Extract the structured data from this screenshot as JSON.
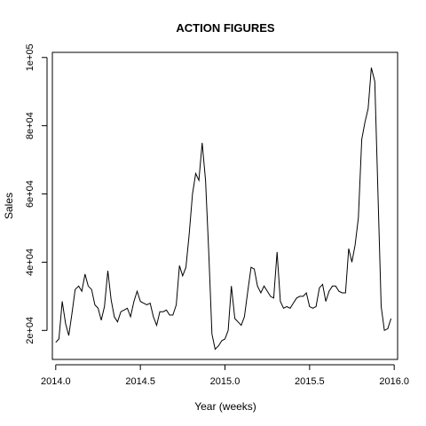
{
  "chart_data": {
    "type": "line",
    "title": "ACTION FIGURES",
    "xlabel": "Year (weeks)",
    "ylabel": "Sales",
    "xlim": [
      2013.98,
      2016.02
    ],
    "ylim": [
      11500,
      101500
    ],
    "x_ticks": [
      {
        "value": 2014.0,
        "label": "2014.0"
      },
      {
        "value": 2014.5,
        "label": "2014.5"
      },
      {
        "value": 2015.0,
        "label": "2015.0"
      },
      {
        "value": 2015.5,
        "label": "2015.5"
      },
      {
        "value": 2016.0,
        "label": "2016.0"
      }
    ],
    "y_ticks": [
      {
        "value": 20000,
        "label": "2e+04"
      },
      {
        "value": 40000,
        "label": "4e+04"
      },
      {
        "value": 60000,
        "label": "6e+04"
      },
      {
        "value": 80000,
        "label": "8e+04"
      },
      {
        "value": 100000,
        "label": "1e+05"
      }
    ],
    "grid": false,
    "legend": "none",
    "series": [
      {
        "x": [
          2014.0,
          2014.019,
          2014.038,
          2014.058,
          2014.077,
          2014.096,
          2014.115,
          2014.135,
          2014.154,
          2014.173,
          2014.192,
          2014.212,
          2014.231,
          2014.25,
          2014.269,
          2014.288,
          2014.308,
          2014.327,
          2014.346,
          2014.365,
          2014.385,
          2014.404,
          2014.423,
          2014.442,
          2014.462,
          2014.481,
          2014.5,
          2014.519,
          2014.538,
          2014.558,
          2014.577,
          2014.596,
          2014.615,
          2014.635,
          2014.654,
          2014.673,
          2014.692,
          2014.712,
          2014.731,
          2014.75,
          2014.769,
          2014.788,
          2014.808,
          2014.827,
          2014.846,
          2014.865,
          2014.885,
          2014.904,
          2014.923,
          2014.942,
          2014.962,
          2014.981,
          2015.0,
          2015.019,
          2015.038,
          2015.058,
          2015.077,
          2015.096,
          2015.115,
          2015.135,
          2015.154,
          2015.173,
          2015.192,
          2015.212,
          2015.231,
          2015.25,
          2015.269,
          2015.288,
          2015.308,
          2015.327,
          2015.346,
          2015.365,
          2015.385,
          2015.404,
          2015.423,
          2015.442,
          2015.462,
          2015.481,
          2015.5,
          2015.519,
          2015.538,
          2015.558,
          2015.577,
          2015.596,
          2015.615,
          2015.635,
          2015.654,
          2015.673,
          2015.692,
          2015.712,
          2015.731,
          2015.75,
          2015.769,
          2015.788,
          2015.808,
          2015.827,
          2015.846,
          2015.865,
          2015.885,
          2015.904,
          2015.923,
          2015.942,
          2015.962,
          2015.981
        ],
        "y": [
          16500,
          17500,
          28500,
          22000,
          18500,
          25000,
          32000,
          33000,
          31500,
          36500,
          33000,
          32000,
          27500,
          26500,
          23000,
          27000,
          37500,
          29000,
          24000,
          22500,
          25500,
          26000,
          26500,
          24000,
          28500,
          31500,
          28500,
          28000,
          27500,
          28000,
          24000,
          21500,
          25500,
          25500,
          26000,
          24500,
          24500,
          27500,
          39000,
          36000,
          38500,
          48000,
          60000,
          66000,
          64000,
          75000,
          64000,
          43000,
          19000,
          14500,
          15500,
          17000,
          17500,
          20000,
          33000,
          23500,
          22500,
          21500,
          24000,
          31500,
          38500,
          38000,
          33000,
          31000,
          33000,
          31500,
          30000,
          29500,
          43000,
          28500,
          26500,
          27000,
          26500,
          28000,
          29500,
          30000,
          30000,
          31000,
          27000,
          26500,
          27000,
          32500,
          33500,
          28500,
          31500,
          33000,
          33000,
          31500,
          31000,
          31000,
          44000,
          40000,
          45000,
          53000,
          76000,
          81000,
          85000,
          97000,
          93000,
          60000,
          27000,
          20000,
          20500,
          23500
        ]
      }
    ]
  }
}
